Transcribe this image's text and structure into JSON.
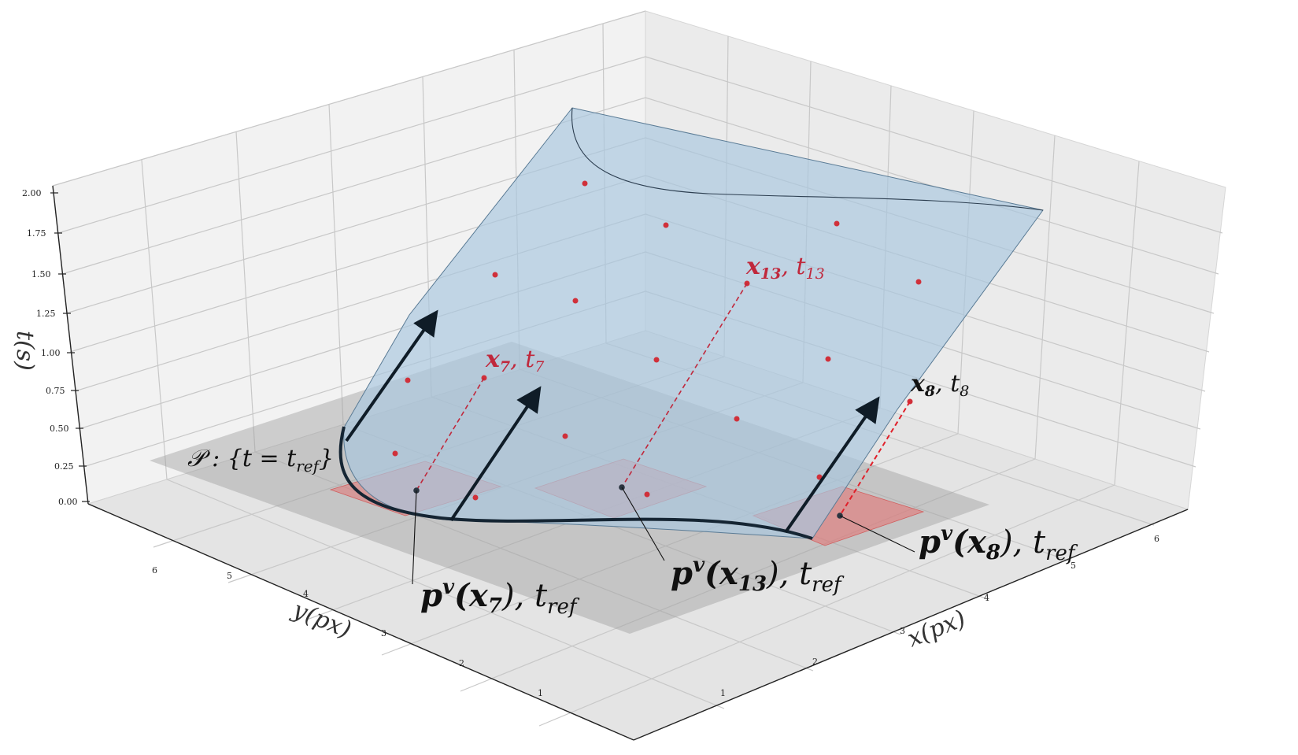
{
  "axes": {
    "z_label": "t(s)",
    "x_label": "x(px)",
    "y_label": "y(px)",
    "z_ticks": [
      "0.00",
      "0.25",
      "0.50",
      "0.75",
      "1.00",
      "1.25",
      "1.50",
      "1.75",
      "2.00"
    ],
    "x_ticks": [
      "1",
      "2",
      "3",
      "4",
      "5",
      "6"
    ],
    "y_ticks": [
      "6",
      "5",
      "4",
      "3",
      "2",
      "1"
    ]
  },
  "plane_label": {
    "main": "𝒫 : {t = t",
    "sub": "ref",
    "close": "}"
  },
  "annotations": {
    "x7": {
      "bold": "x",
      "bold_sub": "7",
      "rest": ", t",
      "rest_sub": "7"
    },
    "x13": {
      "bold": "x",
      "bold_sub": "13",
      "rest": ", t",
      "rest_sub": "13"
    },
    "x8": {
      "bold": "x",
      "bold_sub": "8",
      "rest": ", t",
      "rest_sub": "8"
    },
    "p7": {
      "bold": "p",
      "sup": "v",
      "arg": "(x",
      "arg_sub": "7",
      "close": "), t",
      "tail_sub": "ref"
    },
    "p13": {
      "bold": "p",
      "sup": "v",
      "arg": "(x",
      "arg_sub": "13",
      "close": "), t",
      "tail_sub": "ref"
    },
    "p8": {
      "bold": "p",
      "sup": "v",
      "arg": "(x",
      "arg_sub": "8",
      "close": "), t",
      "tail_sub": "ref"
    }
  },
  "colors": {
    "surface": "#a9c7de",
    "plane": "#9a9a9a",
    "patch": "#e07b7b",
    "point": "#d0303a",
    "arrow": "#152533",
    "annotation_red": "#c0283c",
    "annotation_bright_red": "#e0202a"
  }
}
